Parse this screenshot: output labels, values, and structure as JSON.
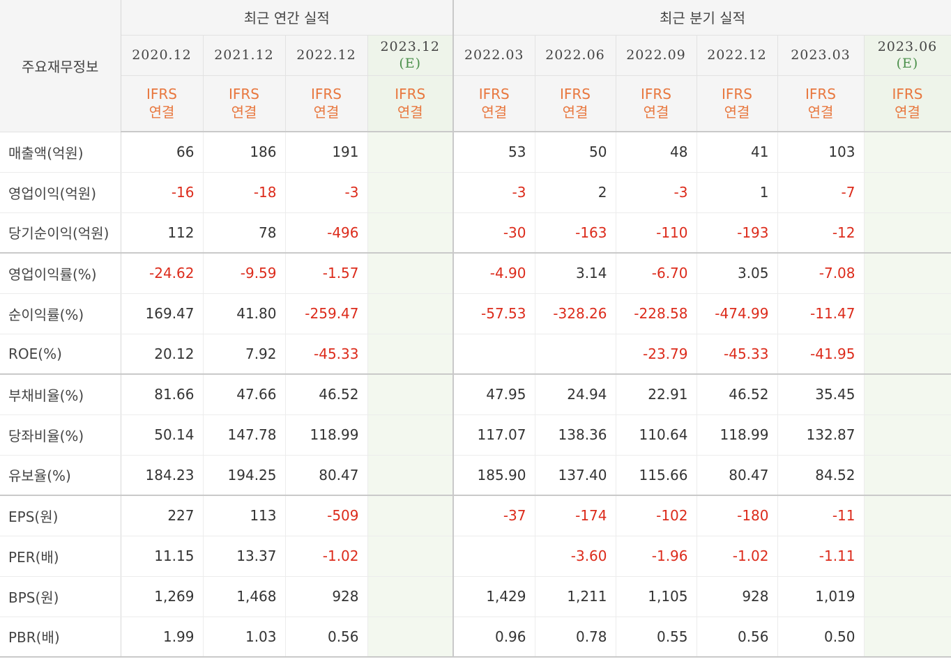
{
  "header": {
    "row_title": "주요재무정보",
    "annual_group": "최근 연간 실적",
    "quarterly_group": "최근 분기 실적",
    "estimate_tag": "(E)",
    "ifrs_line1": "IFRS",
    "ifrs_line2": "연결"
  },
  "annual_periods": [
    "2020.12",
    "2021.12",
    "2022.12",
    "2023.12"
  ],
  "quarterly_periods": [
    "2022.03",
    "2022.06",
    "2022.09",
    "2022.12",
    "2023.03",
    "2023.06"
  ],
  "rows": [
    {
      "label": "매출액(억원)",
      "annual": [
        "66",
        "186",
        "191",
        ""
      ],
      "quarterly": [
        "53",
        "50",
        "48",
        "41",
        "103",
        ""
      ]
    },
    {
      "label": "영업이익(억원)",
      "annual": [
        "-16",
        "-18",
        "-3",
        ""
      ],
      "quarterly": [
        "-3",
        "2",
        "-3",
        "1",
        "-7",
        ""
      ]
    },
    {
      "label": "당기순이익(억원)",
      "annual": [
        "112",
        "78",
        "-496",
        ""
      ],
      "quarterly": [
        "-30",
        "-163",
        "-110",
        "-193",
        "-12",
        ""
      ]
    },
    {
      "label": "영업이익률(%)",
      "annual": [
        "-24.62",
        "-9.59",
        "-1.57",
        ""
      ],
      "quarterly": [
        "-4.90",
        "3.14",
        "-6.70",
        "3.05",
        "-7.08",
        ""
      ]
    },
    {
      "label": "순이익률(%)",
      "annual": [
        "169.47",
        "41.80",
        "-259.47",
        ""
      ],
      "quarterly": [
        "-57.53",
        "-328.26",
        "-228.58",
        "-474.99",
        "-11.47",
        ""
      ]
    },
    {
      "label": "ROE(%)",
      "annual": [
        "20.12",
        "7.92",
        "-45.33",
        ""
      ],
      "quarterly": [
        "",
        "",
        "-23.79",
        "-45.33",
        "-41.95",
        ""
      ]
    },
    {
      "label": "부채비율(%)",
      "annual": [
        "81.66",
        "47.66",
        "46.52",
        ""
      ],
      "quarterly": [
        "47.95",
        "24.94",
        "22.91",
        "46.52",
        "35.45",
        ""
      ]
    },
    {
      "label": "당좌비율(%)",
      "annual": [
        "50.14",
        "147.78",
        "118.99",
        ""
      ],
      "quarterly": [
        "117.07",
        "138.36",
        "110.64",
        "118.99",
        "132.87",
        ""
      ]
    },
    {
      "label": "유보율(%)",
      "annual": [
        "184.23",
        "194.25",
        "80.47",
        ""
      ],
      "quarterly": [
        "185.90",
        "137.40",
        "115.66",
        "80.47",
        "84.52",
        ""
      ]
    },
    {
      "label": "EPS(원)",
      "annual": [
        "227",
        "113",
        "-509",
        ""
      ],
      "quarterly": [
        "-37",
        "-174",
        "-102",
        "-180",
        "-11",
        ""
      ]
    },
    {
      "label": "PER(배)",
      "annual": [
        "11.15",
        "13.37",
        "-1.02",
        ""
      ],
      "quarterly": [
        "",
        "-3.60",
        "-1.96",
        "-1.02",
        "-1.11",
        ""
      ]
    },
    {
      "label": "BPS(원)",
      "annual": [
        "1,269",
        "1,468",
        "928",
        ""
      ],
      "quarterly": [
        "1,429",
        "1,211",
        "1,105",
        "928",
        "1,019",
        ""
      ]
    },
    {
      "label": "PBR(배)",
      "annual": [
        "1.99",
        "1.03",
        "0.56",
        ""
      ],
      "quarterly": [
        "0.96",
        "0.78",
        "0.55",
        "0.56",
        "0.50",
        ""
      ]
    }
  ],
  "colors": {
    "negative": "#dc2b1b",
    "ifrs": "#e8773e",
    "estimate_bg": "#eef4ea",
    "estimate_text": "#4a8f4a"
  }
}
